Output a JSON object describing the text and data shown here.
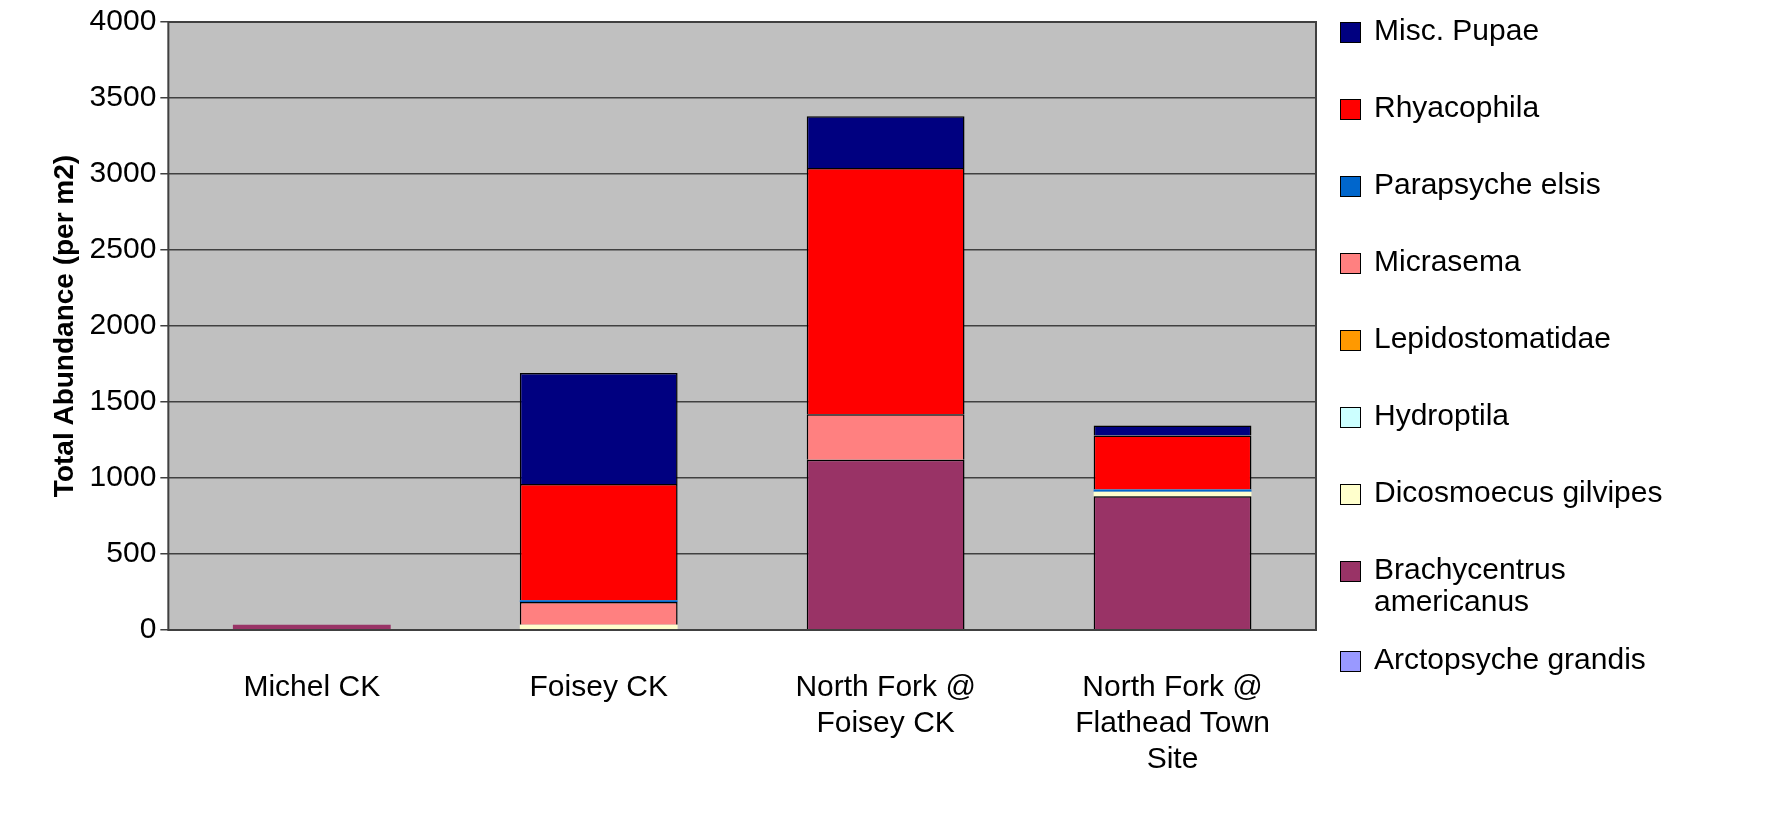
{
  "chart_data": {
    "type": "bar",
    "stacked": true,
    "ylabel": "Total Abundance (per m2)",
    "categories": [
      "Michel CK",
      "Foisey CK",
      "North Fork @ Foisey CK",
      "North Fork @ Flathead Town Site"
    ],
    "series": [
      {
        "name": "Arctopsyche grandis",
        "color": "#9999ff",
        "values": [
          0,
          0,
          0,
          0
        ]
      },
      {
        "name": "Brachycentrus americanus",
        "color": "#993366",
        "values": [
          35,
          0,
          1120,
          880
        ]
      },
      {
        "name": "Dicosmoecus gilvipes",
        "color": "#ffffcc",
        "values": [
          0,
          35,
          0,
          30
        ]
      },
      {
        "name": "Hydroptila",
        "color": "#ccffff",
        "values": [
          0,
          0,
          0,
          0
        ]
      },
      {
        "name": "Lepidostomatidae",
        "color": "#ff9900",
        "values": [
          0,
          0,
          0,
          0
        ]
      },
      {
        "name": "Micrasema",
        "color": "#ff8080",
        "values": [
          0,
          150,
          300,
          0
        ]
      },
      {
        "name": "Parapsyche elsis",
        "color": "#0066cc",
        "values": [
          0,
          10,
          0,
          15
        ]
      },
      {
        "name": "Rhyacophila",
        "color": "#ff0000",
        "values": [
          0,
          765,
          1620,
          355
        ]
      },
      {
        "name": "Misc. Pupae",
        "color": "#000080",
        "values": [
          0,
          730,
          340,
          65
        ]
      }
    ],
    "ylim": [
      0,
      4000
    ],
    "yticks": [
      0,
      500,
      1000,
      1500,
      2000,
      2500,
      3000,
      3500,
      4000
    ],
    "grid": "y",
    "legend": "right"
  }
}
